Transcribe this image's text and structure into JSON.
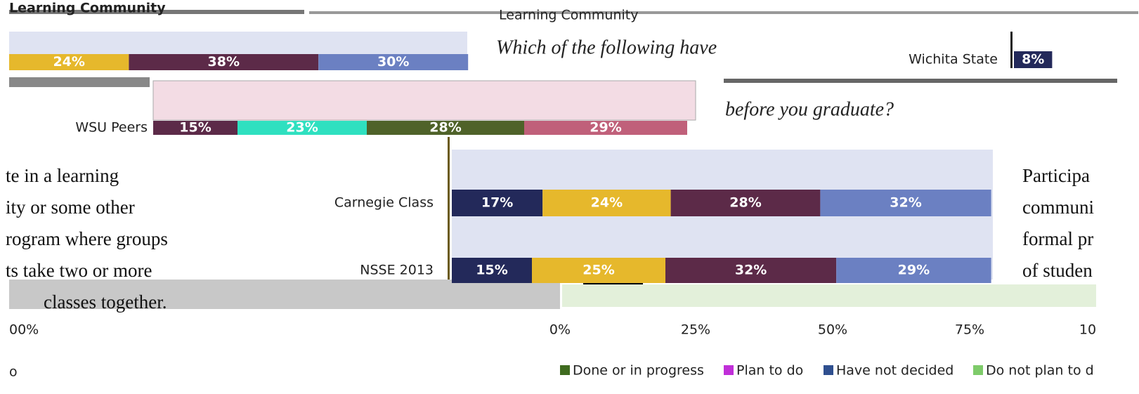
{
  "header": {
    "title": "Learning Community",
    "banner": "Learning Community"
  },
  "question": {
    "line1": "Which of the following have",
    "line2": "before you graduate?"
  },
  "rows": [
    {
      "values": [
        24,
        38,
        30
      ],
      "value_labels": [
        "24%",
        "38%",
        "30%"
      ],
      "colors": [
        "#e6b82c",
        "#5c2a48",
        "#6b80c2"
      ]
    },
    {
      "label": "WSU Peers",
      "values": [
        15,
        23,
        28,
        29
      ],
      "value_labels": [
        "15%",
        "23%",
        "28%",
        "29%"
      ],
      "colors": [
        "#5c2a48",
        "#2fe0c0",
        "#4f6229",
        "#c0607a"
      ]
    },
    {
      "label": "Wichita State",
      "values": [
        8
      ],
      "value_labels": [
        "8%"
      ],
      "colors": [
        "#23295a"
      ]
    },
    {
      "label": "Carnegie Class",
      "values": [
        17,
        24,
        28,
        32
      ],
      "value_labels": [
        "17%",
        "24%",
        "28%",
        "32%"
      ],
      "colors": [
        "#23295a",
        "#e6b82c",
        "#5c2a48",
        "#6b80c2"
      ]
    },
    {
      "label": "NSSE 2013",
      "values": [
        15,
        25,
        32,
        29
      ],
      "value_labels": [
        "15%",
        "25%",
        "32%",
        "29%"
      ],
      "colors": [
        "#23295a",
        "#e6b82c",
        "#5c2a48",
        "#6b80c2"
      ]
    }
  ],
  "left_text": [
    "te in a learning",
    "ity or some other",
    "rogram where groups",
    "ts take two or more",
    "classes together."
  ],
  "right_text": [
    "Participa",
    "communi",
    "formal pr",
    "of studen"
  ],
  "ticks": [
    "00%",
    "0%",
    "25%",
    "50%",
    "75%",
    "10"
  ],
  "footnote": "o",
  "legend": [
    {
      "name": "Done or in progress",
      "color": "#3f6b1f"
    },
    {
      "name": "Plan to do",
      "color": "#c02fd8"
    },
    {
      "name": "Have not decided",
      "color": "#2f4f8f"
    },
    {
      "name": "Do not plan to d",
      "color": "#7ecb6a"
    }
  ]
}
